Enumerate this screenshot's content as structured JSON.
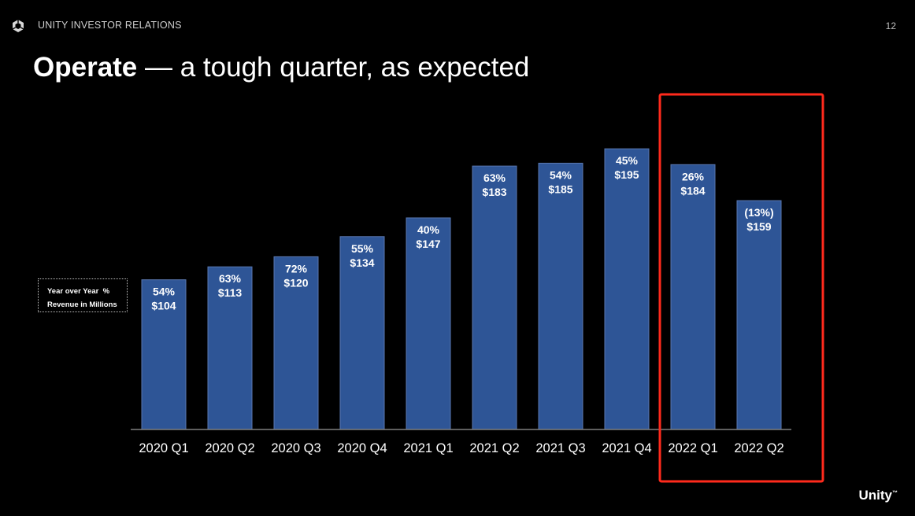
{
  "header": {
    "label": "UNITY INVESTOR RELATIONS",
    "page_number": "12"
  },
  "title": {
    "bold": "Operate",
    "rest": " — a tough quarter, as expected"
  },
  "legend": {
    "line1": "Year over Year  %",
    "line2": "Revenue in Millions"
  },
  "brand": {
    "wordmark": "Unity",
    "mark": "™"
  },
  "colors": {
    "bar_fill": "#2e5596",
    "highlight": "#ff2a1c",
    "background": "#000000"
  },
  "chart_data": {
    "type": "bar",
    "title": "Operate — a tough quarter, as expected",
    "xlabel": "",
    "ylabel": "Revenue in Millions",
    "categories": [
      "2020 Q1",
      "2020 Q2",
      "2020 Q3",
      "2020 Q4",
      "2021 Q1",
      "2021 Q2",
      "2021 Q3",
      "2021 Q4",
      "2022 Q1",
      "2022 Q2"
    ],
    "values": [
      104,
      113,
      120,
      134,
      147,
      183,
      185,
      195,
      184,
      159
    ],
    "value_labels": [
      "$104",
      "$113",
      "$120",
      "$134",
      "$147",
      "$183",
      "$185",
      "$195",
      "$184",
      "$159"
    ],
    "yoy_labels": [
      "54%",
      "63%",
      "72%",
      "55%",
      "40%",
      "63%",
      "54%",
      "45%",
      "26%",
      "(13%)"
    ],
    "ylim": [
      0,
      200
    ],
    "grid": false,
    "highlighted_categories": [
      "2022 Q1",
      "2022 Q2"
    ]
  }
}
